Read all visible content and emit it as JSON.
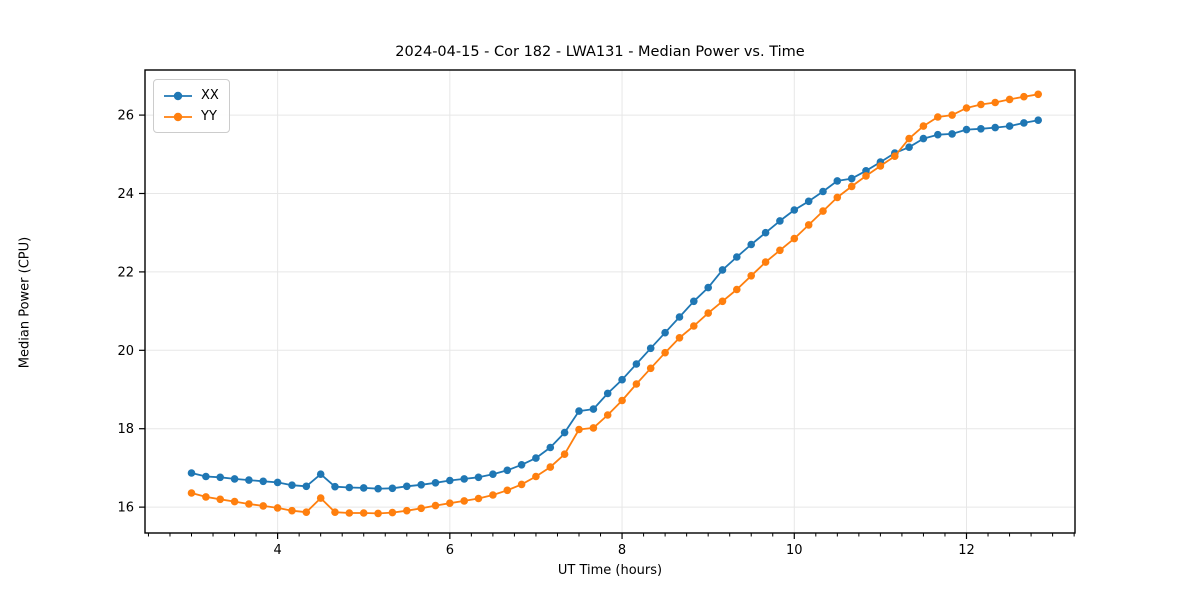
{
  "figure": {
    "background": "#ffffff"
  },
  "chart_data": {
    "type": "line",
    "title": "2024-04-15 - Cor 182 - LWA131 - Median Power vs. Time",
    "xlabel": "UT Time (hours)",
    "ylabel": "Median Power (CPU)",
    "xlim": [
      2.46,
      13.26
    ],
    "ylim": [
      15.34,
      27.15
    ],
    "xticks": [
      4,
      6,
      8,
      10,
      12
    ],
    "yticks": [
      16,
      18,
      20,
      22,
      24,
      26
    ],
    "x_minor_tick_step": 0.25,
    "grid": true,
    "grid_color": "#e7e7e7",
    "legend_position": "upper-left",
    "x": [
      3.0,
      3.167,
      3.333,
      3.5,
      3.667,
      3.833,
      4.0,
      4.167,
      4.333,
      4.5,
      4.667,
      4.833,
      5.0,
      5.167,
      5.333,
      5.5,
      5.667,
      5.833,
      6.0,
      6.167,
      6.333,
      6.5,
      6.667,
      6.833,
      7.0,
      7.167,
      7.333,
      7.5,
      7.667,
      7.833,
      8.0,
      8.167,
      8.333,
      8.5,
      8.667,
      8.833,
      9.0,
      9.167,
      9.333,
      9.5,
      9.667,
      9.833,
      10.0,
      10.167,
      10.333,
      10.5,
      10.667,
      10.833,
      11.0,
      11.167,
      11.333,
      11.5,
      11.667,
      11.833,
      12.0,
      12.167,
      12.333,
      12.5,
      12.667,
      12.833
    ],
    "series": [
      {
        "name": "XX",
        "color": "#1f77b4",
        "marker": "circle",
        "values": [
          16.87,
          16.78,
          16.76,
          16.72,
          16.69,
          16.66,
          16.63,
          16.56,
          16.53,
          16.84,
          16.52,
          16.5,
          16.49,
          16.47,
          16.48,
          16.53,
          16.57,
          16.62,
          16.68,
          16.72,
          16.76,
          16.84,
          16.94,
          17.08,
          17.25,
          17.52,
          17.9,
          18.45,
          18.5,
          18.9,
          19.25,
          19.65,
          20.05,
          20.45,
          20.85,
          21.25,
          21.6,
          22.05,
          22.38,
          22.7,
          23.0,
          23.3,
          23.58,
          23.8,
          24.05,
          24.32,
          24.38,
          24.58,
          24.8,
          25.03,
          25.18,
          25.4,
          25.5,
          25.52,
          25.63,
          25.65,
          25.68,
          25.72,
          25.8,
          25.87
        ]
      },
      {
        "name": "YY",
        "color": "#ff7f0e",
        "marker": "circle",
        "values": [
          16.36,
          16.26,
          16.2,
          16.14,
          16.08,
          16.03,
          15.98,
          15.91,
          15.87,
          16.23,
          15.87,
          15.85,
          15.85,
          15.84,
          15.86,
          15.91,
          15.97,
          16.04,
          16.1,
          16.16,
          16.22,
          16.31,
          16.43,
          16.58,
          16.78,
          17.02,
          17.35,
          17.98,
          18.02,
          18.35,
          18.72,
          19.14,
          19.54,
          19.94,
          20.32,
          20.62,
          20.95,
          21.25,
          21.55,
          21.9,
          22.25,
          22.55,
          22.85,
          23.2,
          23.55,
          23.9,
          24.18,
          24.45,
          24.7,
          24.95,
          25.4,
          25.72,
          25.95,
          26.0,
          26.18,
          26.27,
          26.32,
          26.4,
          26.47,
          26.53
        ]
      }
    ]
  }
}
